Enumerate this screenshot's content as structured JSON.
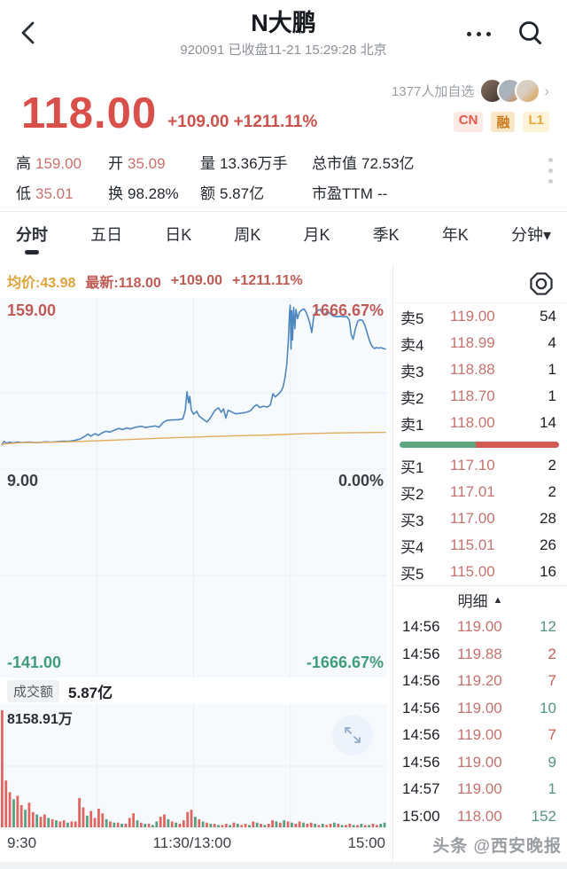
{
  "header": {
    "title": "N大鹏",
    "subtitle": "920091 已收盘11-21 15:29:28 北京"
  },
  "price": {
    "current": "118.00",
    "change": "+109.00",
    "change_pct": "+1211.11%",
    "watchers": "1377人加自选",
    "badges": [
      "CN",
      "融",
      "L1"
    ]
  },
  "stats": {
    "cells": [
      {
        "label": "高",
        "value": "159.00",
        "red": true
      },
      {
        "label": "开",
        "value": "35.09",
        "red": true
      },
      {
        "label": "量",
        "value": "13.36万手",
        "red": false
      },
      {
        "label": "总市值",
        "value": "72.53亿",
        "red": false
      },
      {
        "label": "低",
        "value": "35.01",
        "red": true
      },
      {
        "label": "换",
        "value": "98.28%",
        "red": false
      },
      {
        "label": "额",
        "value": "5.87亿",
        "red": false
      },
      {
        "label": "市盈TTM",
        "value": "--",
        "red": false
      }
    ]
  },
  "tabs": {
    "items": [
      {
        "label": "分时",
        "caret": false
      },
      {
        "label": "五日",
        "caret": false
      },
      {
        "label": "日K",
        "caret": false
      },
      {
        "label": "周K",
        "caret": false
      },
      {
        "label": "月K",
        "caret": false
      },
      {
        "label": "季K",
        "caret": false
      },
      {
        "label": "年K",
        "caret": false
      },
      {
        "label": "分钟",
        "caret": true
      }
    ],
    "active": 0
  },
  "chart": {
    "legend": {
      "avg": "均价:43.98",
      "latest": "最新:118.00",
      "change": "+109.00",
      "pct": "+1211.11%"
    },
    "y_labels": {
      "top_left": "159.00",
      "top_right": "1666.67%",
      "mid_left": "9.00",
      "mid_right": "0.00%",
      "bot_left": "-141.00",
      "bot_right": "-1666.67%"
    },
    "amount_label": "成交额",
    "amount_value": "5.87亿",
    "vol_max": "8158.91万",
    "x_labels": [
      "9:30",
      "11:30/13:00",
      "15:00"
    ]
  },
  "chart_data": {
    "type": "line+bar",
    "title": "分时",
    "x_range": [
      "09:30",
      "15:00"
    ],
    "x_labels": [
      "9:30",
      "11:30/13:00",
      "15:00"
    ],
    "price_axis": {
      "top": 159.0,
      "mid": 9.0,
      "bottom": -141.0,
      "pct_top": "1666.67%",
      "pct_mid": "0.00%",
      "pct_bottom": "-1666.67%"
    },
    "series": [
      {
        "name": "price",
        "color": "#4e87c0",
        "points": [
          [
            0,
            33
          ],
          [
            0.006,
            36
          ],
          [
            0.012,
            34.3
          ],
          [
            0.02,
            35.2
          ],
          [
            0.03,
            34.6
          ],
          [
            0.04,
            35.4
          ],
          [
            0.055,
            35
          ],
          [
            0.07,
            35.3
          ],
          [
            0.085,
            34.9
          ],
          [
            0.1,
            35.1
          ],
          [
            0.115,
            35.5
          ],
          [
            0.13,
            35.2
          ],
          [
            0.145,
            35.8
          ],
          [
            0.16,
            36.2
          ],
          [
            0.175,
            36
          ],
          [
            0.19,
            36.8
          ],
          [
            0.205,
            38.2
          ],
          [
            0.215,
            40.2
          ],
          [
            0.225,
            42.5
          ],
          [
            0.232,
            40.6
          ],
          [
            0.243,
            42.8
          ],
          [
            0.252,
            41.4
          ],
          [
            0.262,
            43.6
          ],
          [
            0.272,
            45
          ],
          [
            0.282,
            44.2
          ],
          [
            0.295,
            46.2
          ],
          [
            0.305,
            47.4
          ],
          [
            0.315,
            46.4
          ],
          [
            0.325,
            47.8
          ],
          [
            0.335,
            47
          ],
          [
            0.35,
            48.6
          ],
          [
            0.365,
            49.4
          ],
          [
            0.375,
            48.2
          ],
          [
            0.39,
            49.2
          ],
          [
            0.4,
            49.6
          ],
          [
            0.41,
            48.6
          ],
          [
            0.42,
            52.5
          ],
          [
            0.43,
            54.6
          ],
          [
            0.445,
            55
          ],
          [
            0.46,
            55.2
          ],
          [
            0.472,
            56
          ],
          [
            0.478,
            63
          ],
          [
            0.483,
            80
          ],
          [
            0.487,
            70
          ],
          [
            0.49,
            76
          ],
          [
            0.494,
            64
          ],
          [
            0.5,
            60
          ],
          [
            0.508,
            62.6
          ],
          [
            0.515,
            58.2
          ],
          [
            0.525,
            55.6
          ],
          [
            0.535,
            53.2
          ],
          [
            0.545,
            57.5
          ],
          [
            0.555,
            63.2
          ],
          [
            0.565,
            65.8
          ],
          [
            0.572,
            61.8
          ],
          [
            0.578,
            64.8
          ],
          [
            0.584,
            56.6
          ],
          [
            0.59,
            63.6
          ],
          [
            0.6,
            62
          ],
          [
            0.61,
            60.4
          ],
          [
            0.622,
            61
          ],
          [
            0.635,
            61.6
          ],
          [
            0.648,
            63
          ],
          [
            0.658,
            67
          ],
          [
            0.665,
            68.6
          ],
          [
            0.672,
            66
          ],
          [
            0.682,
            67.2
          ],
          [
            0.692,
            66.4
          ],
          [
            0.7,
            68.2
          ],
          [
            0.707,
            78.4
          ],
          [
            0.713,
            75.4
          ],
          [
            0.72,
            77.6
          ],
          [
            0.727,
            80
          ],
          [
            0.733,
            84
          ],
          [
            0.738,
            92
          ],
          [
            0.743,
            104
          ],
          [
            0.747,
            126
          ],
          [
            0.75,
            150
          ],
          [
            0.752,
            157
          ],
          [
            0.754,
            118
          ],
          [
            0.756,
            152
          ],
          [
            0.758,
            126
          ],
          [
            0.761,
            155
          ],
          [
            0.764,
            136
          ],
          [
            0.767,
            153
          ],
          [
            0.771,
            145
          ],
          [
            0.776,
            150.6
          ],
          [
            0.782,
            152.6
          ],
          [
            0.788,
            153.6
          ],
          [
            0.793,
            150.8
          ],
          [
            0.798,
            146.6
          ],
          [
            0.803,
            141
          ],
          [
            0.808,
            132.6
          ],
          [
            0.813,
            146
          ],
          [
            0.818,
            150.4
          ],
          [
            0.824,
            152.4
          ],
          [
            0.83,
            153
          ],
          [
            0.836,
            150.2
          ],
          [
            0.842,
            148.2
          ],
          [
            0.848,
            151.4
          ],
          [
            0.855,
            149.8
          ],
          [
            0.863,
            147.4
          ],
          [
            0.872,
            146.6
          ],
          [
            0.882,
            147
          ],
          [
            0.892,
            146.6
          ],
          [
            0.9,
            146.8
          ],
          [
            0.906,
            143.6
          ],
          [
            0.911,
            130.6
          ],
          [
            0.916,
            126.6
          ],
          [
            0.922,
            136
          ],
          [
            0.928,
            142.6
          ],
          [
            0.934,
            144
          ],
          [
            0.94,
            143.4
          ],
          [
            0.946,
            139.6
          ],
          [
            0.952,
            133
          ],
          [
            0.957,
            127
          ],
          [
            0.962,
            122.6
          ],
          [
            0.967,
            119.6
          ],
          [
            0.972,
            118.4
          ],
          [
            0.977,
            119.4
          ],
          [
            0.982,
            118.6
          ],
          [
            0.987,
            119.2
          ],
          [
            0.993,
            118.6
          ],
          [
            1,
            118
          ]
        ]
      },
      {
        "name": "avg",
        "color": "#e3ab5c",
        "points": [
          [
            0,
            33.5
          ],
          [
            0.05,
            34.8
          ],
          [
            0.1,
            35.1
          ],
          [
            0.15,
            35.4
          ],
          [
            0.2,
            35.9
          ],
          [
            0.25,
            36.5
          ],
          [
            0.3,
            37.2
          ],
          [
            0.35,
            37.9
          ],
          [
            0.4,
            38.6
          ],
          [
            0.45,
            39.2
          ],
          [
            0.5,
            39.8
          ],
          [
            0.55,
            40.3
          ],
          [
            0.6,
            40.8
          ],
          [
            0.65,
            41.2
          ],
          [
            0.7,
            41.7
          ],
          [
            0.75,
            42.3
          ],
          [
            0.8,
            42.9
          ],
          [
            0.85,
            43.3
          ],
          [
            0.9,
            43.6
          ],
          [
            0.95,
            43.8
          ],
          [
            1,
            43.98
          ]
        ]
      }
    ],
    "volume": {
      "max_label": "8158.91万",
      "turnover": "5.87亿",
      "bars": [
        "1.00r",
        "0.40r",
        "0.30r",
        "0.24g",
        "0.27r",
        "0.19r",
        "0.15g",
        "0.21r",
        "0.13r",
        "0.11g",
        "0.09r",
        "0.11r",
        "0.08g",
        "0.07r",
        "0.06g",
        "0.05r",
        "0.06r",
        "0.04g",
        "0.05r",
        "0.05r",
        "0.25r",
        "0.17r",
        "0.10g",
        "0.14r",
        "0.08r",
        "0.16r",
        "0.12r",
        "0.07g",
        "0.05r",
        "0.04g",
        "0.04r",
        "0.03g",
        "0.03r",
        "0.08r",
        "0.12r",
        "0.06g",
        "0.04r",
        "0.03g",
        "0.03r",
        "0.02g",
        "0.05g",
        "0.09r",
        "0.11r",
        "0.07g",
        "0.05r",
        "0.04g",
        "0.03r",
        "0.06r",
        "0.13r",
        "0.15r",
        "0.09g",
        "0.07r",
        "0.05g",
        "0.04r",
        "0.03g",
        "0.03r",
        "0.02g",
        "0.02r",
        "0.03r",
        "0.02g",
        "0.04r",
        "0.03g",
        "0.02r",
        "0.03r",
        "0.02g",
        "0.05r",
        "0.04g",
        "0.03r",
        "0.02g",
        "0.03r",
        "0.06r",
        "0.05g",
        "0.04r",
        "0.06g",
        "0.05r",
        "0.04g",
        "0.03r",
        "0.05r",
        "0.04g",
        "0.03r",
        "0.04r",
        "0.03g",
        "0.02r",
        "0.03g",
        "0.02r",
        "0.03r",
        "0.04g",
        "0.03r",
        "0.02g",
        "0.02r",
        "0.03r",
        "0.02g",
        "0.02r",
        "0.03g",
        "0.02r",
        "0.02g",
        "0.03r",
        "0.02r",
        "0.03g",
        "0.04g"
      ]
    }
  },
  "order_book": {
    "sell": [
      {
        "label": "卖5",
        "price": "119.00",
        "vol": "54"
      },
      {
        "label": "卖4",
        "price": "118.99",
        "vol": "4"
      },
      {
        "label": "卖3",
        "price": "118.88",
        "vol": "1"
      },
      {
        "label": "卖2",
        "price": "118.70",
        "vol": "1"
      },
      {
        "label": "卖1",
        "price": "118.00",
        "vol": "14"
      }
    ],
    "buy": [
      {
        "label": "买1",
        "price": "117.10",
        "vol": "2"
      },
      {
        "label": "买2",
        "price": "117.01",
        "vol": "2"
      },
      {
        "label": "买3",
        "price": "117.00",
        "vol": "28"
      },
      {
        "label": "买4",
        "price": "115.01",
        "vol": "26"
      },
      {
        "label": "买5",
        "price": "115.00",
        "vol": "16"
      }
    ],
    "green_ratio": 0.48
  },
  "detail": {
    "title": "明细",
    "rows": [
      {
        "time": "14:56",
        "price": "119.00",
        "vol": "12",
        "dir": "g"
      },
      {
        "time": "14:56",
        "price": "119.88",
        "vol": "2",
        "dir": "r"
      },
      {
        "time": "14:56",
        "price": "119.20",
        "vol": "7",
        "dir": "r"
      },
      {
        "time": "14:56",
        "price": "119.00",
        "vol": "10",
        "dir": "g"
      },
      {
        "time": "14:56",
        "price": "119.00",
        "vol": "7",
        "dir": "r"
      },
      {
        "time": "14:56",
        "price": "119.00",
        "vol": "9",
        "dir": "g"
      },
      {
        "time": "14:57",
        "price": "119.00",
        "vol": "1",
        "dir": "g"
      },
      {
        "time": "15:00",
        "price": "118.00",
        "vol": "152",
        "dir": "g"
      }
    ]
  },
  "watermark": "头条 @西安晚报",
  "colors": {
    "up_red": "#d9504b",
    "down_green": "#3f9c7b",
    "price_line": "#4e87c0",
    "avg_line": "#e3ab5c",
    "pane_bg": "#f6fafd",
    "grid": "#e7eef5",
    "bar_red": "#e26560",
    "bar_green": "#55a080"
  }
}
